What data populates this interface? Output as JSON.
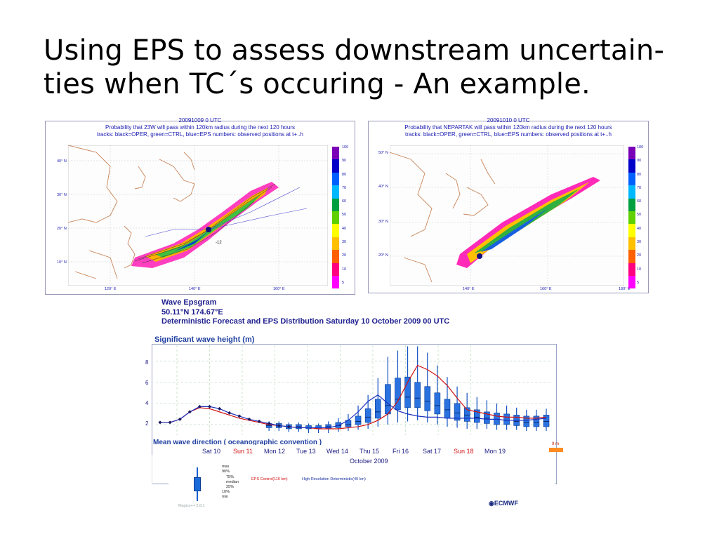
{
  "slide": {
    "title_line1": "Using EPS to assess downstream uncertain-",
    "title_line2": "ties when TC´s occuring - An example."
  },
  "map_left": {
    "line1": "20091009 0 UTC",
    "line2": "Probability that 23W will pass within 120km radius during the next 120 hours",
    "line3": "tracks: black=OPER, green=CTRL, blue=EPS numbers: observed positions at t+..h",
    "lat_labels": [
      "40° N",
      "30° N",
      "20° N",
      "10° N"
    ],
    "lon_labels": [
      "120° E",
      "140° E",
      "160° E"
    ],
    "marker": "-12"
  },
  "map_right": {
    "line1": "20091010 0 UTC",
    "line2": "Probability that NEPARTAK will pass within 120km radius during the next 120 hours",
    "line3": "tracks: black=OPER, green=CTRL, blue=EPS numbers: observed positions at t+..h",
    "lat_labels": [
      "50° N",
      "40° N",
      "30° N",
      "20° N"
    ],
    "lon_labels": [
      "140° E",
      "160° E",
      "180° E"
    ]
  },
  "colorbar": {
    "labels": [
      "100",
      "90",
      "80",
      "70",
      "60",
      "50",
      "40",
      "30",
      "20",
      "10",
      "5"
    ],
    "colors": [
      "#7a00b8",
      "#0000c8",
      "#0060ff",
      "#00b8ff",
      "#00a040",
      "#60d000",
      "#ffff00",
      "#ffc000",
      "#ff6000",
      "#ff0080",
      "#ff00ff"
    ]
  },
  "wave": {
    "title": "Wave Epsgram",
    "location": "50.11°N 174.67°E",
    "subtitle": "Deterministic Forecast and EPS Distribution Saturday 10 October 2009 00 UTC",
    "panel_title": "Significant wave height (m)",
    "y_ticks": [
      "8",
      "6",
      "4",
      "2"
    ],
    "next_panel_title": "Mean wave direction ( oceanographic convention )",
    "days": [
      {
        "label": "Sat 10",
        "color": "#1a1a80"
      },
      {
        "label": "Sun 11",
        "color": "#d01010"
      },
      {
        "label": "Mon 12",
        "color": "#1a1a80"
      },
      {
        "label": "Tue 13",
        "color": "#1a1a80"
      },
      {
        "label": "Wed 14",
        "color": "#1a1a80"
      },
      {
        "label": "Thu 15",
        "color": "#1a1a80"
      },
      {
        "label": "Fri 16",
        "color": "#1a1a80"
      },
      {
        "label": "Sat 17",
        "color": "#1a1a80"
      },
      {
        "label": "Sun 18",
        "color": "#d01010"
      },
      {
        "label": "Mon 19",
        "color": "#1a1a80"
      }
    ],
    "month": "October 2009",
    "scale_label": "9 m",
    "legend_stats": [
      "max",
      "90%",
      "75%",
      "median",
      "25%",
      "10%",
      "min"
    ],
    "legend_red": "EPS Control(110 km)",
    "legend_blue": "High Resolution Deterministic(40 km)",
    "footer": "Magics++ 2.8.1",
    "logo": "ECMWF"
  },
  "chart_data": {
    "type": "line",
    "title": "Significant wave height (m)",
    "ylabel": "",
    "ylim": [
      1,
      9.5
    ],
    "x_count": 40,
    "series": [
      {
        "name": "EPS Control(110 km)",
        "color": "#d01010",
        "values": [
          2.2,
          2.2,
          2.5,
          3.2,
          3.6,
          3.5,
          3.2,
          2.9,
          2.6,
          2.4,
          2.2,
          2.0,
          1.9,
          1.8,
          1.7,
          1.7,
          1.6,
          1.6,
          1.6,
          1.7,
          1.8,
          2.0,
          2.4,
          3.0,
          4.2,
          6.0,
          7.6,
          7.2,
          6.6,
          5.7,
          4.5,
          3.4,
          3.2,
          3.0,
          2.8,
          2.7,
          2.7,
          2.6,
          2.6,
          2.7
        ]
      },
      {
        "name": "High Resolution Deterministic(40 km)",
        "color": "#1a30c0",
        "values": [
          2.2,
          2.2,
          2.5,
          3.2,
          3.7,
          3.7,
          3.5,
          3.1,
          2.8,
          2.5,
          2.3,
          2.1,
          1.9,
          1.8,
          1.7,
          1.7,
          1.7,
          1.7,
          1.9,
          2.4,
          3.2,
          4.2,
          4.8,
          4.0,
          3.3,
          3.0,
          2.8,
          2.7,
          2.7,
          2.6,
          2.6,
          2.6,
          2.6,
          2.5,
          2.5,
          2.4,
          2.4,
          2.4,
          2.5,
          2.6
        ]
      }
    ],
    "boxes": {
      "start_index": 11,
      "min": [
        1.4,
        1.4,
        1.3,
        1.3,
        1.2,
        1.2,
        1.2,
        1.3,
        1.4,
        1.5,
        1.6,
        1.8,
        2.0,
        2.2,
        2.3,
        2.4,
        2.2,
        2.0,
        1.8,
        1.7,
        1.6,
        1.6,
        1.6,
        1.5,
        1.5,
        1.5,
        1.4,
        1.4,
        1.4
      ],
      "q25": [
        1.7,
        1.7,
        1.6,
        1.6,
        1.6,
        1.6,
        1.6,
        1.7,
        1.8,
        2.0,
        2.2,
        2.6,
        3.0,
        3.4,
        3.6,
        3.6,
        3.3,
        3.0,
        2.6,
        2.4,
        2.3,
        2.2,
        2.1,
        2.0,
        2.0,
        1.9,
        1.8,
        1.8,
        1.8
      ],
      "median": [
        1.9,
        1.9,
        1.8,
        1.8,
        1.7,
        1.7,
        1.8,
        1.9,
        2.0,
        2.3,
        2.7,
        3.2,
        3.8,
        4.4,
        4.6,
        4.5,
        4.2,
        3.8,
        3.4,
        3.1,
        2.9,
        2.7,
        2.6,
        2.5,
        2.4,
        2.3,
        2.2,
        2.2,
        2.3
      ],
      "q75": [
        2.1,
        2.1,
        2.0,
        2.0,
        1.9,
        1.9,
        2.0,
        2.2,
        2.4,
        2.8,
        3.5,
        4.4,
        5.8,
        6.4,
        6.5,
        6.0,
        5.6,
        5.0,
        4.4,
        4.0,
        3.6,
        3.4,
        3.2,
        3.1,
        3.0,
        2.9,
        2.8,
        2.8,
        2.9
      ],
      "max": [
        2.3,
        2.3,
        2.2,
        2.2,
        2.1,
        2.1,
        2.3,
        2.6,
        3.0,
        3.8,
        4.8,
        6.4,
        8.4,
        9.0,
        9.4,
        9.4,
        8.8,
        7.6,
        6.5,
        5.6,
        5.0,
        4.6,
        4.3,
        4.0,
        3.8,
        3.6,
        3.4,
        3.4,
        3.5
      ]
    },
    "grid": true
  }
}
